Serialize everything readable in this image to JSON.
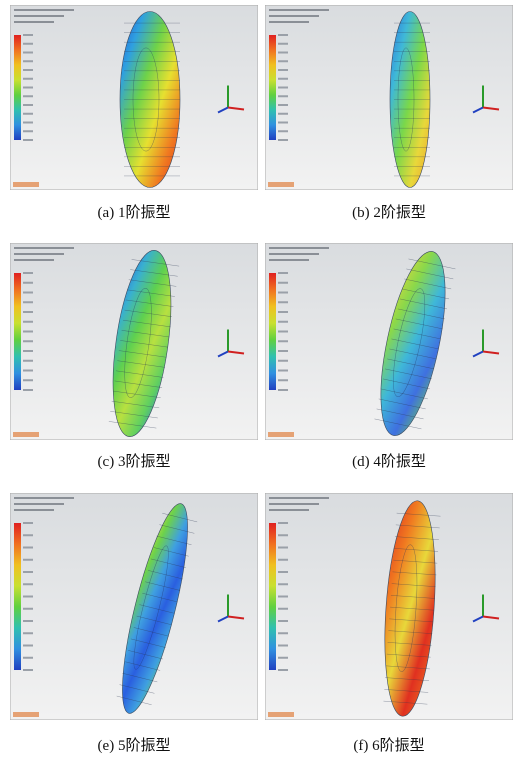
{
  "figure": {
    "panels": [
      {
        "caption": "(a) 1阶振型"
      },
      {
        "caption": "(b) 2阶振型"
      },
      {
        "caption": "(c) 3阶振型"
      },
      {
        "caption": "(d) 4阶振型"
      },
      {
        "caption": "(e) 5阶振型"
      },
      {
        "caption": "(f) 6阶振型"
      }
    ]
  }
}
